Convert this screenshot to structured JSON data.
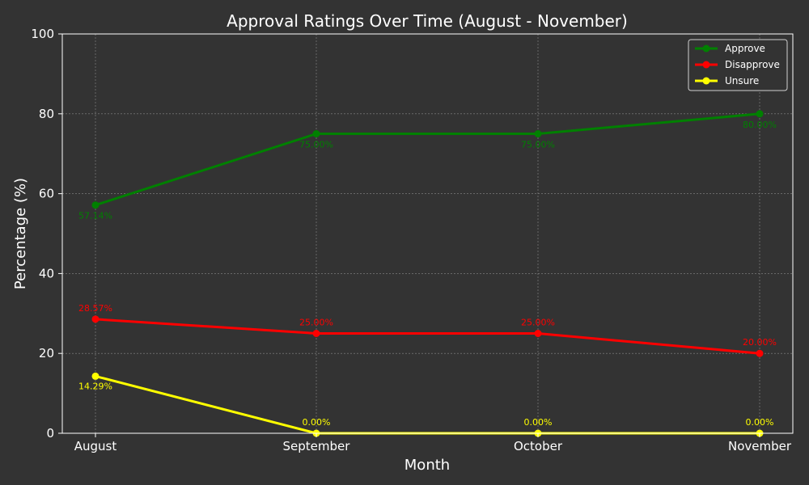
{
  "chart_data": {
    "type": "line",
    "title": "Approval Ratings Over Time (August - November)",
    "xlabel": "Month",
    "ylabel": "Percentage (%)",
    "categories": [
      "August",
      "September",
      "October",
      "November"
    ],
    "ylim": [
      0,
      100
    ],
    "yticks": [
      0,
      20,
      40,
      60,
      80,
      100
    ],
    "grid": true,
    "legend_position": "top-right",
    "series": [
      {
        "name": "Approve",
        "color": "#008000",
        "values": [
          57.14,
          75.0,
          75.0,
          80.0
        ],
        "labels": [
          "57.14%",
          "75.00%",
          "75.00%",
          "80.00%"
        ],
        "label_position": "below"
      },
      {
        "name": "Disapprove",
        "color": "#ff0000",
        "values": [
          28.57,
          25.0,
          25.0,
          20.0
        ],
        "labels": [
          "28.57%",
          "25.00%",
          "25.00%",
          "20.00%"
        ],
        "label_position": "above"
      },
      {
        "name": "Unsure",
        "color": "#ffff00",
        "values": [
          14.29,
          0.0,
          0.0,
          0.0
        ],
        "labels": [
          "14.29%",
          "0.00%",
          "0.00%",
          "0.00%"
        ],
        "label_position": "mixed"
      }
    ]
  },
  "colors": {
    "background": "#333333",
    "grid": "#8a8a8a",
    "axis": "#ffffff",
    "text": "#ffffff"
  }
}
